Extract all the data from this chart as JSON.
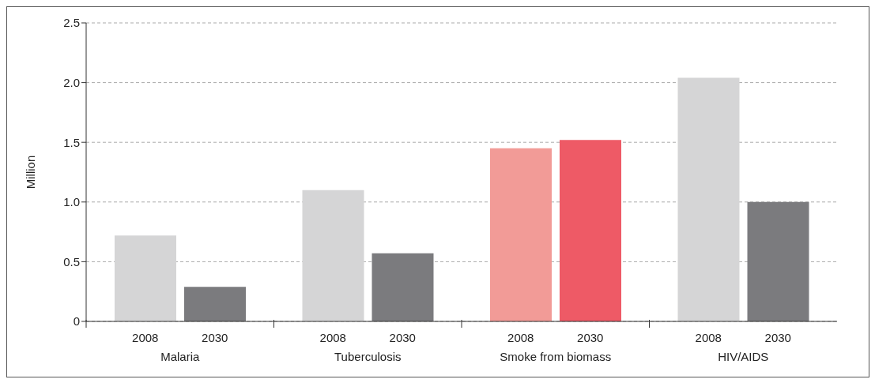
{
  "chart_data": {
    "type": "bar",
    "ylabel": "Million",
    "categories": [
      "Malaria",
      "Tuberculosis",
      "Smoke from biomass",
      "HIV/AIDS"
    ],
    "series": [
      {
        "name": "2008",
        "colors": [
          "#d5d5d6",
          "#d5d5d6",
          "#f29b97",
          "#d5d5d6"
        ],
        "values": [
          0.72,
          1.1,
          1.45,
          2.04
        ]
      },
      {
        "name": "2030",
        "colors": [
          "#7b7b7e",
          "#7b7b7e",
          "#ee5a66",
          "#7b7b7e"
        ],
        "values": [
          0.29,
          0.57,
          1.52,
          1.0
        ]
      }
    ],
    "ylim": [
      0,
      2.5
    ],
    "yticks": [
      0,
      0.5,
      {
        "value": 1,
        "label": "1.0"
      },
      1.5,
      {
        "value": 2,
        "label": "2.0"
      },
      2.5
    ],
    "grid": "y",
    "line_style": "dashed",
    "legend": false
  }
}
